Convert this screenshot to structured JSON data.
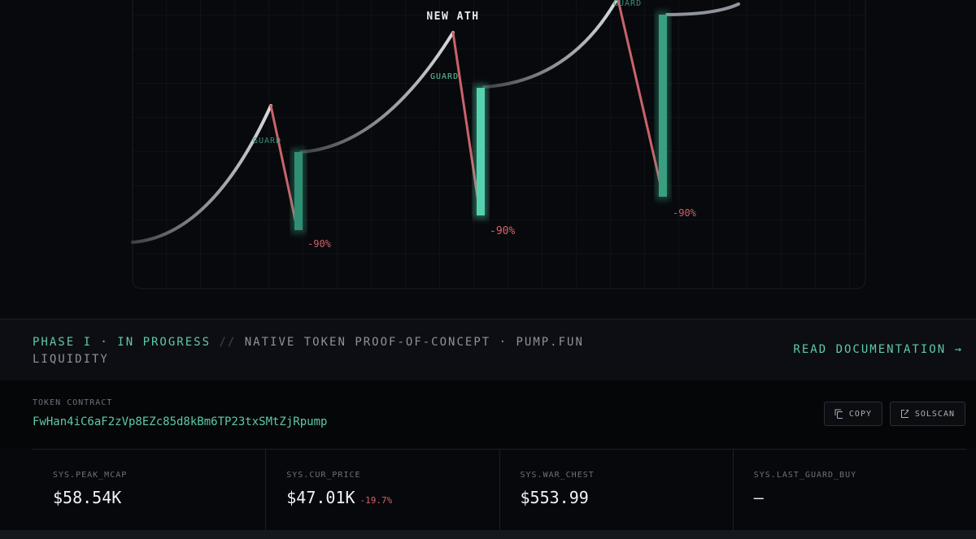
{
  "chart": {
    "new_ath": "NEW ATH",
    "guards": [
      "GUARD",
      "GUARD",
      "GUARD"
    ],
    "drops": [
      "-90%",
      "-90%",
      "-90%"
    ]
  },
  "banner": {
    "phase": "PHASE I · IN PROGRESS",
    "separator": "//",
    "description": "NATIVE TOKEN PROOF-OF-CONCEPT · PUMP.FUN LIQUIDITY",
    "link": "READ DOCUMENTATION →"
  },
  "contract": {
    "label": "TOKEN CONTRACT",
    "address": "FwHan4iC6aF2zVp8EZc85d8kBm6TP23txSMtZjRpump",
    "buttons": [
      "COPY",
      "SOLSCAN"
    ]
  },
  "stats": [
    {
      "label": "SYS.PEAK_MCAP",
      "value": "$58.54K"
    },
    {
      "label": "SYS.CUR_PRICE",
      "value": "$47.01K",
      "change": "-19.7%"
    },
    {
      "label": "SYS.WAR_CHEST",
      "value": "$553.99"
    },
    {
      "label": "SYS.LAST_GUARD_BUY",
      "value": "—"
    }
  ]
}
